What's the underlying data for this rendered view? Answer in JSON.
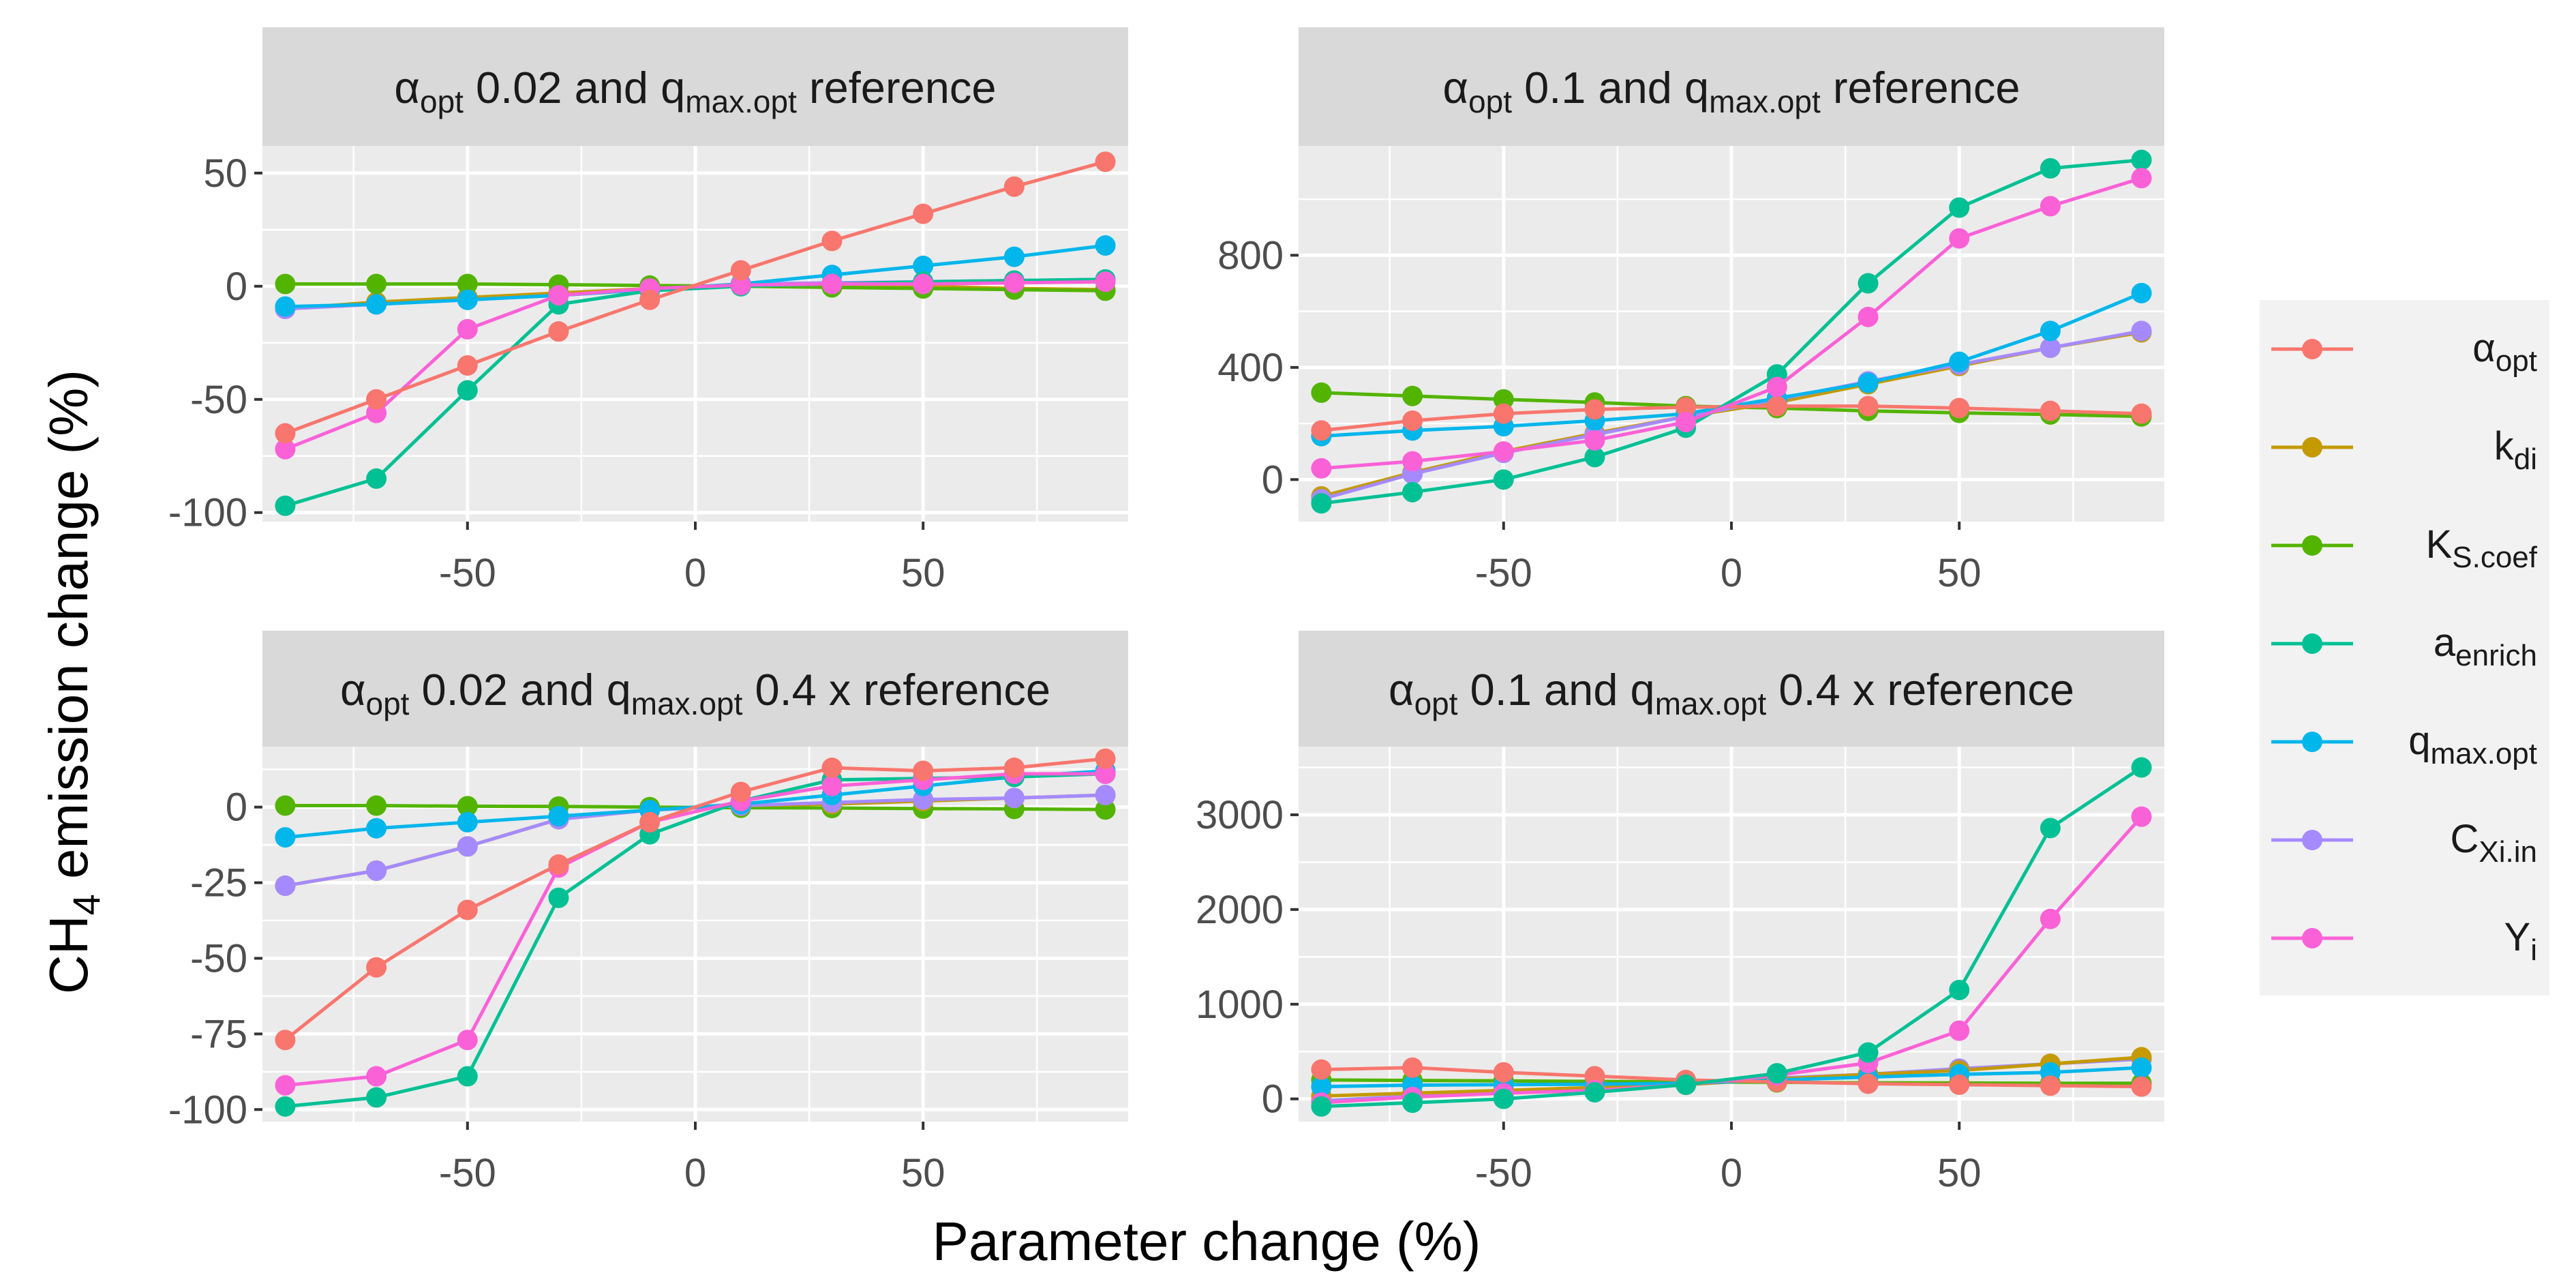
{
  "figure": {
    "xlabel": "Parameter change (%)",
    "ylabel": "CH4 emission change (%)",
    "ylabel_parts": {
      "main": "CH",
      "sub": "4",
      "rest": " emission change (%)"
    }
  },
  "legend": [
    {
      "key": "alpha_opt",
      "sym": "α",
      "sub": "opt",
      "color": "#F8766D"
    },
    {
      "key": "k_di",
      "sym": "k",
      "sub": "di",
      "color": "#C49A00"
    },
    {
      "key": "K_Scoef",
      "sym": "K",
      "sub": "S.coef",
      "color": "#53B400"
    },
    {
      "key": "a_enrich",
      "sym": "a",
      "sub": "enrich",
      "color": "#00C094"
    },
    {
      "key": "q_maxopt",
      "sym": "q",
      "sub": "max.opt",
      "color": "#00B6EB"
    },
    {
      "key": "C_Xiin",
      "sym": "C",
      "sub": "Xi.in",
      "color": "#A58AFF"
    },
    {
      "key": "Y_i",
      "sym": "Y",
      "sub": "i",
      "color": "#FB61D7"
    }
  ],
  "chart_data": [
    {
      "type": "line",
      "title_parts": [
        {
          "t": "α"
        },
        {
          "t": "opt",
          "sub": true
        },
        {
          "t": " 0.02 and q"
        },
        {
          "t": "max.opt",
          "sub": true
        },
        {
          "t": " reference"
        }
      ],
      "xlim": [
        -95,
        95
      ],
      "xticks": [
        -50,
        0,
        50
      ],
      "ylim": [
        -104,
        62
      ],
      "yticks": [
        50,
        0,
        -50,
        -100
      ],
      "x": [
        -90,
        -70,
        -50,
        -30,
        -10,
        10,
        30,
        50,
        70,
        90
      ],
      "series": [
        {
          "key": "k_di",
          "values": [
            -10,
            -7,
            -5,
            -3,
            -1,
            0.5,
            0.5,
            0,
            -1,
            -1.5
          ]
        },
        {
          "key": "K_Scoef",
          "values": [
            1,
            1,
            1,
            0.7,
            0.3,
            0,
            -0.5,
            -1,
            -1.5,
            -2
          ]
        },
        {
          "key": "C_Xiin",
          "values": [
            -10,
            -8,
            -6,
            -4,
            -1.5,
            1,
            1.5,
            2,
            2.5,
            3
          ]
        },
        {
          "key": "q_maxopt",
          "values": [
            -9,
            -8,
            -6,
            -4,
            -1.5,
            1,
            5,
            9,
            13,
            18
          ]
        },
        {
          "key": "a_enrich",
          "values": [
            -97,
            -85,
            -46,
            -8,
            -2,
            0,
            1,
            2,
            2.5,
            3
          ]
        },
        {
          "key": "Y_i",
          "values": [
            -72,
            -56,
            -19,
            -4,
            -1,
            0.5,
            1,
            1,
            1.5,
            2
          ]
        },
        {
          "key": "alpha_opt",
          "values": [
            -65,
            -50,
            -35,
            -20,
            -6,
            7,
            20,
            32,
            44,
            55
          ]
        }
      ]
    },
    {
      "type": "line",
      "title_parts": [
        {
          "t": "α"
        },
        {
          "t": "opt",
          "sub": true
        },
        {
          "t": " 0.1 and q"
        },
        {
          "t": "max.opt",
          "sub": true
        },
        {
          "t": " reference"
        }
      ],
      "xlim": [
        -95,
        95
      ],
      "xticks": [
        -50,
        0,
        50
      ],
      "ylim": [
        -150,
        1190
      ],
      "yticks": [
        800,
        400,
        0
      ],
      "x": [
        -90,
        -70,
        -50,
        -30,
        -10,
        10,
        30,
        50,
        70,
        90
      ],
      "series": [
        {
          "key": "K_Scoef",
          "values": [
            310,
            298,
            286,
            275,
            262,
            255,
            245,
            238,
            232,
            225
          ]
        },
        {
          "key": "k_di",
          "values": [
            -60,
            25,
            100,
            165,
            225,
            275,
            340,
            405,
            470,
            525
          ]
        },
        {
          "key": "C_Xiin",
          "values": [
            -70,
            20,
            95,
            160,
            225,
            285,
            350,
            410,
            470,
            530
          ]
        },
        {
          "key": "q_maxopt",
          "values": [
            155,
            175,
            190,
            210,
            235,
            290,
            345,
            420,
            530,
            665
          ]
        },
        {
          "key": "alpha_opt",
          "values": [
            175,
            210,
            235,
            250,
            258,
            262,
            262,
            255,
            245,
            235
          ]
        },
        {
          "key": "a_enrich",
          "values": [
            -85,
            -45,
            0,
            80,
            185,
            375,
            700,
            970,
            1110,
            1140
          ]
        },
        {
          "key": "Y_i",
          "values": [
            40,
            65,
            100,
            140,
            205,
            330,
            580,
            860,
            975,
            1075
          ]
        }
      ]
    },
    {
      "type": "line",
      "title_parts": [
        {
          "t": "α"
        },
        {
          "t": "opt",
          "sub": true
        },
        {
          "t": " 0.02 and q"
        },
        {
          "t": "max.opt",
          "sub": true
        },
        {
          "t": " 0.4 x reference"
        }
      ],
      "xlim": [
        -95,
        95
      ],
      "xticks": [
        -50,
        0,
        50
      ],
      "ylim": [
        -104,
        20
      ],
      "yticks": [
        0,
        -25,
        -50,
        -75,
        -100
      ],
      "x": [
        -90,
        -70,
        -50,
        -30,
        -10,
        10,
        30,
        50,
        70,
        90
      ],
      "series": [
        {
          "key": "K_Scoef",
          "values": [
            0.5,
            0.5,
            0.3,
            0.2,
            0,
            -0.2,
            -0.3,
            -0.5,
            -0.6,
            -0.8
          ]
        },
        {
          "key": "k_di",
          "values": [
            -26,
            -21,
            -13,
            -4,
            -1,
            0.5,
            1,
            2,
            3,
            4
          ]
        },
        {
          "key": "C_Xiin",
          "values": [
            -26,
            -21,
            -13,
            -4,
            -1,
            0.5,
            1.5,
            2.5,
            3,
            4
          ]
        },
        {
          "key": "q_maxopt",
          "values": [
            -10,
            -7,
            -5,
            -3,
            -1,
            1,
            4,
            7,
            10,
            12
          ]
        },
        {
          "key": "a_enrich",
          "values": [
            -99,
            -96,
            -89,
            -30,
            -9,
            2,
            9,
            9.5,
            10,
            11
          ]
        },
        {
          "key": "Y_i",
          "values": [
            -92,
            -89,
            -77,
            -20,
            -5,
            2,
            7,
            9,
            11,
            11
          ]
        },
        {
          "key": "alpha_opt",
          "values": [
            -77,
            -53,
            -34,
            -19,
            -5,
            5,
            13,
            12,
            13,
            16
          ]
        }
      ]
    },
    {
      "type": "line",
      "title_parts": [
        {
          "t": "α"
        },
        {
          "t": "opt",
          "sub": true
        },
        {
          "t": " 0.1 and q"
        },
        {
          "t": "max.opt",
          "sub": true
        },
        {
          "t": " 0.4 x reference"
        }
      ],
      "xlim": [
        -95,
        95
      ],
      "xticks": [
        -50,
        0,
        50
      ],
      "ylim": [
        -240,
        3720
      ],
      "yticks": [
        3000,
        2000,
        1000,
        0
      ],
      "x": [
        -90,
        -70,
        -50,
        -30,
        -10,
        10,
        30,
        50,
        70,
        90
      ],
      "series": [
        {
          "key": "K_Scoef",
          "values": [
            200,
            195,
            190,
            185,
            180,
            175,
            170,
            168,
            165,
            165
          ]
        },
        {
          "key": "C_Xiin",
          "values": [
            -20,
            30,
            80,
            110,
            150,
            220,
            260,
            320,
            370,
            420
          ]
        },
        {
          "key": "k_di",
          "values": [
            30,
            60,
            90,
            120,
            150,
            210,
            260,
            300,
            370,
            440
          ]
        },
        {
          "key": "q_maxopt",
          "values": [
            130,
            145,
            150,
            155,
            165,
            200,
            230,
            260,
            280,
            330
          ]
        },
        {
          "key": "alpha_opt",
          "values": [
            310,
            330,
            280,
            240,
            200,
            180,
            160,
            150,
            140,
            130
          ]
        },
        {
          "key": "Y_i",
          "values": [
            -40,
            20,
            60,
            90,
            150,
            250,
            380,
            720,
            1900,
            2980
          ]
        },
        {
          "key": "a_enrich",
          "values": [
            -80,
            -40,
            0,
            70,
            150,
            270,
            490,
            1150,
            2860,
            3500
          ]
        }
      ]
    }
  ]
}
